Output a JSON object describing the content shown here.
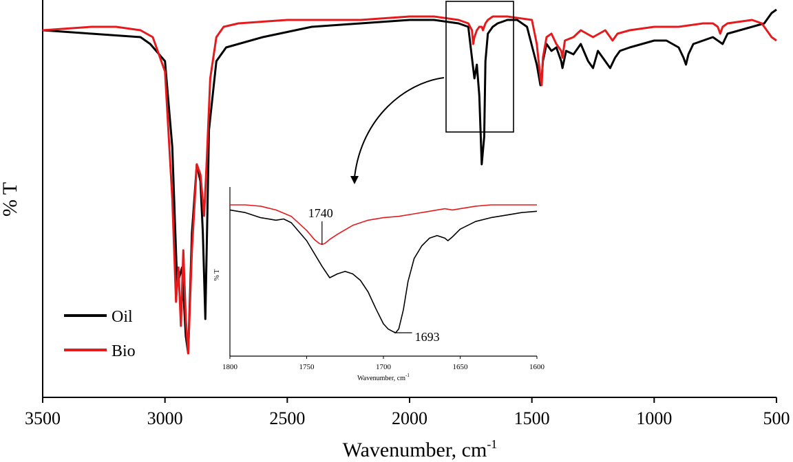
{
  "chart_data": [
    {
      "type": "line",
      "xlabel": "Wavenumber, cm",
      "xlabel_superscript": "-1",
      "ylabel": "% T",
      "xlim": [
        3500,
        500
      ],
      "x_ticks": [
        3500,
        3000,
        2500,
        2000,
        1500,
        1000,
        500
      ],
      "legend": {
        "placement": "bottom-left",
        "entries": [
          "Oil",
          "Bio"
        ]
      },
      "colors": {
        "Oil": "#000000",
        "Bio": "#e41a1c"
      },
      "series": [
        {
          "name": "Oil",
          "x": [
            3500,
            3300,
            3100,
            3060,
            3000,
            2970,
            2950,
            2930,
            2915,
            2905,
            2890,
            2870,
            2855,
            2845,
            2835,
            2820,
            2790,
            2750,
            2600,
            2400,
            2200,
            2000,
            1900,
            1800,
            1760,
            1745,
            1735,
            1725,
            1715,
            1705,
            1695,
            1690,
            1680,
            1660,
            1640,
            1600,
            1560,
            1520,
            1480,
            1465,
            1460,
            1455,
            1440,
            1420,
            1400,
            1380,
            1375,
            1360,
            1330,
            1300,
            1270,
            1250,
            1230,
            1200,
            1180,
            1160,
            1140,
            1100,
            1050,
            1000,
            950,
            900,
            880,
            870,
            860,
            840,
            800,
            760,
            740,
            720,
            700,
            650,
            600,
            550,
            520,
            500
          ],
          "y": [
            0.94,
            0.93,
            0.92,
            0.9,
            0.85,
            0.6,
            0.2,
            0.25,
            0.05,
            0.0,
            0.35,
            0.55,
            0.5,
            0.35,
            0.1,
            0.65,
            0.85,
            0.89,
            0.92,
            0.95,
            0.96,
            0.97,
            0.97,
            0.96,
            0.95,
            0.86,
            0.8,
            0.84,
            0.75,
            0.55,
            0.63,
            0.85,
            0.93,
            0.95,
            0.96,
            0.97,
            0.97,
            0.95,
            0.84,
            0.78,
            0.8,
            0.85,
            0.9,
            0.88,
            0.89,
            0.85,
            0.83,
            0.88,
            0.87,
            0.9,
            0.85,
            0.83,
            0.88,
            0.85,
            0.83,
            0.86,
            0.88,
            0.89,
            0.9,
            0.91,
            0.91,
            0.89,
            0.86,
            0.84,
            0.87,
            0.9,
            0.91,
            0.92,
            0.91,
            0.9,
            0.93,
            0.94,
            0.95,
            0.96,
            0.99,
            1.0
          ]
        },
        {
          "name": "Bio",
          "x": [
            3500,
            3300,
            3200,
            3100,
            3050,
            3000,
            2970,
            2955,
            2945,
            2935,
            2925,
            2915,
            2905,
            2890,
            2870,
            2855,
            2840,
            2830,
            2815,
            2790,
            2760,
            2700,
            2500,
            2200,
            2000,
            1900,
            1800,
            1760,
            1745,
            1740,
            1735,
            1725,
            1715,
            1705,
            1700,
            1690,
            1680,
            1660,
            1600,
            1500,
            1480,
            1465,
            1460,
            1455,
            1440,
            1420,
            1400,
            1380,
            1375,
            1365,
            1330,
            1300,
            1250,
            1200,
            1180,
            1170,
            1150,
            1100,
            1000,
            900,
            800,
            760,
            740,
            730,
            720,
            700,
            600,
            560,
            540,
            520,
            500
          ],
          "y": [
            0.94,
            0.95,
            0.95,
            0.94,
            0.92,
            0.82,
            0.45,
            0.15,
            0.25,
            0.08,
            0.3,
            0.1,
            0.0,
            0.3,
            0.55,
            0.52,
            0.4,
            0.55,
            0.8,
            0.92,
            0.95,
            0.96,
            0.97,
            0.97,
            0.98,
            0.98,
            0.97,
            0.96,
            0.94,
            0.9,
            0.92,
            0.94,
            0.95,
            0.95,
            0.94,
            0.96,
            0.97,
            0.98,
            0.98,
            0.97,
            0.9,
            0.8,
            0.78,
            0.86,
            0.92,
            0.93,
            0.9,
            0.88,
            0.86,
            0.91,
            0.92,
            0.94,
            0.92,
            0.94,
            0.92,
            0.91,
            0.93,
            0.94,
            0.95,
            0.95,
            0.96,
            0.96,
            0.95,
            0.93,
            0.95,
            0.96,
            0.97,
            0.96,
            0.94,
            0.92,
            0.91
          ]
        }
      ]
    },
    {
      "type": "line",
      "xlabel": "Wavenumber, cm",
      "xlabel_superscript": "-1",
      "ylabel": "% T",
      "xlim": [
        1800,
        1600
      ],
      "x_ticks": [
        1800,
        1750,
        1700,
        1650,
        1600
      ],
      "annotations": [
        {
          "text": "1740",
          "x": 1740,
          "series": "Bio"
        },
        {
          "text": "1693",
          "x": 1693,
          "series": "Oil"
        }
      ],
      "series": [
        {
          "name": "Oil",
          "x": [
            1800,
            1790,
            1780,
            1770,
            1765,
            1760,
            1750,
            1740,
            1735,
            1730,
            1725,
            1720,
            1715,
            1710,
            1705,
            1700,
            1697,
            1694,
            1692,
            1690,
            1687,
            1684,
            1680,
            1675,
            1670,
            1665,
            1660,
            1658,
            1655,
            1650,
            1640,
            1630,
            1620,
            1610,
            1600
          ],
          "y": [
            0.96,
            0.94,
            0.9,
            0.88,
            0.89,
            0.86,
            0.72,
            0.52,
            0.43,
            0.46,
            0.48,
            0.46,
            0.41,
            0.32,
            0.19,
            0.07,
            0.03,
            0.01,
            0.0,
            0.03,
            0.18,
            0.4,
            0.58,
            0.68,
            0.74,
            0.76,
            0.74,
            0.72,
            0.75,
            0.81,
            0.87,
            0.9,
            0.92,
            0.94,
            0.95
          ]
        },
        {
          "name": "Bio",
          "x": [
            1800,
            1790,
            1780,
            1770,
            1760,
            1750,
            1745,
            1742,
            1740,
            1738,
            1735,
            1730,
            1720,
            1710,
            1700,
            1690,
            1680,
            1670,
            1665,
            1660,
            1655,
            1650,
            1640,
            1630,
            1620,
            1610,
            1600
          ],
          "y": [
            1.0,
            1.0,
            0.99,
            0.96,
            0.91,
            0.8,
            0.73,
            0.7,
            0.69,
            0.7,
            0.73,
            0.77,
            0.84,
            0.88,
            0.9,
            0.91,
            0.93,
            0.95,
            0.96,
            0.97,
            0.96,
            0.97,
            0.99,
            1.0,
            1.0,
            1.0,
            1.0
          ]
        }
      ]
    }
  ]
}
